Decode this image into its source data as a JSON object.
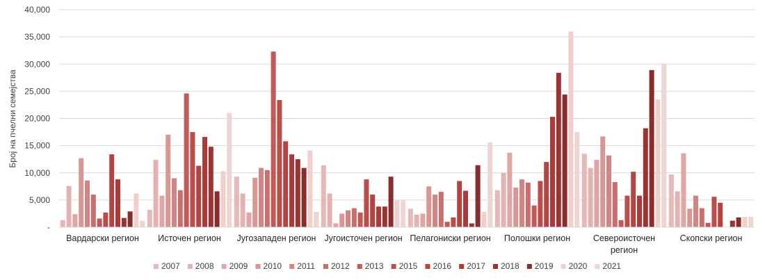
{
  "chart_data": {
    "type": "bar",
    "ylabel": "Број на пчелни семејства",
    "xlabel": "",
    "ylim": [
      0,
      40000
    ],
    "yticks": [
      0,
      5000,
      10000,
      15000,
      20000,
      25000,
      30000,
      35000,
      40000
    ],
    "ytick_labels": [
      "-",
      "5,000",
      "10,000",
      "15,000",
      "20,000",
      "25,000",
      "30,000",
      "35,000",
      "40,000"
    ],
    "grid": true,
    "legend_position": "bottom",
    "categories": [
      [
        "Вардарски регион"
      ],
      [
        "Источен  регион"
      ],
      [
        "Југозападен регион"
      ],
      [
        "Југоисточен регион"
      ],
      [
        "Пелагониски регион"
      ],
      [
        "Полошки регион"
      ],
      [
        "Североисточен",
        "регион"
      ],
      [
        "Скопски регион"
      ]
    ],
    "series": [
      {
        "name": "2007",
        "color": "#e6b9b8",
        "values": [
          1300,
          3200,
          9300,
          11400,
          3400,
          6800,
          13500,
          9700
        ]
      },
      {
        "name": "2008",
        "color": "#e3b3b1",
        "values": [
          7600,
          12400,
          6200,
          6200,
          2300,
          10000,
          10900,
          6600
        ]
      },
      {
        "name": "2009",
        "color": "#dfa6a4",
        "values": [
          2400,
          5800,
          2700,
          700,
          2500,
          13700,
          12400,
          13600
        ]
      },
      {
        "name": "2010",
        "color": "#d99794",
        "values": [
          12700,
          17000,
          9100,
          2500,
          7500,
          7300,
          16700,
          3400
        ]
      },
      {
        "name": "2011",
        "color": "#d08684",
        "values": [
          8600,
          9000,
          10900,
          3100,
          6000,
          8800,
          13200,
          5800
        ]
      },
      {
        "name": "2012",
        "color": "#c96f6d",
        "values": [
          6000,
          6800,
          10500,
          3500,
          6500,
          8200,
          8300,
          3500
        ]
      },
      {
        "name": "2013",
        "color": "#c25a58",
        "values": [
          1600,
          24600,
          32300,
          2700,
          1000,
          4000,
          1300,
          800
        ]
      },
      {
        "name": "2015",
        "color": "#bb4e4b",
        "values": [
          2700,
          17500,
          23400,
          8800,
          1800,
          8500,
          5800,
          5600
        ]
      },
      {
        "name": "2016",
        "color": "#b34442",
        "values": [
          13400,
          11300,
          15800,
          6000,
          8500,
          12000,
          10200,
          4500
        ]
      },
      {
        "name": "2017",
        "color": "#a93b3a",
        "values": [
          8800,
          16600,
          13400,
          3800,
          6700,
          20300,
          5800,
          0
        ]
      },
      {
        "name": "2018",
        "color": "#9c3333",
        "values": [
          1700,
          14800,
          12500,
          3800,
          700,
          28400,
          18200,
          1200
        ]
      },
      {
        "name": "2019",
        "color": "#892c2c",
        "values": [
          2900,
          6600,
          10900,
          9300,
          11400,
          24400,
          28900,
          1800
        ]
      },
      {
        "name": "2020",
        "color": "#f0cfcd",
        "values": [
          6200,
          10300,
          14100,
          4900,
          2800,
          36000,
          23500,
          1900
        ]
      },
      {
        "name": "2021",
        "color": "#edd5d3",
        "values": [
          1200,
          21000,
          2800,
          4900,
          15600,
          17500,
          30100,
          1900
        ]
      }
    ]
  }
}
